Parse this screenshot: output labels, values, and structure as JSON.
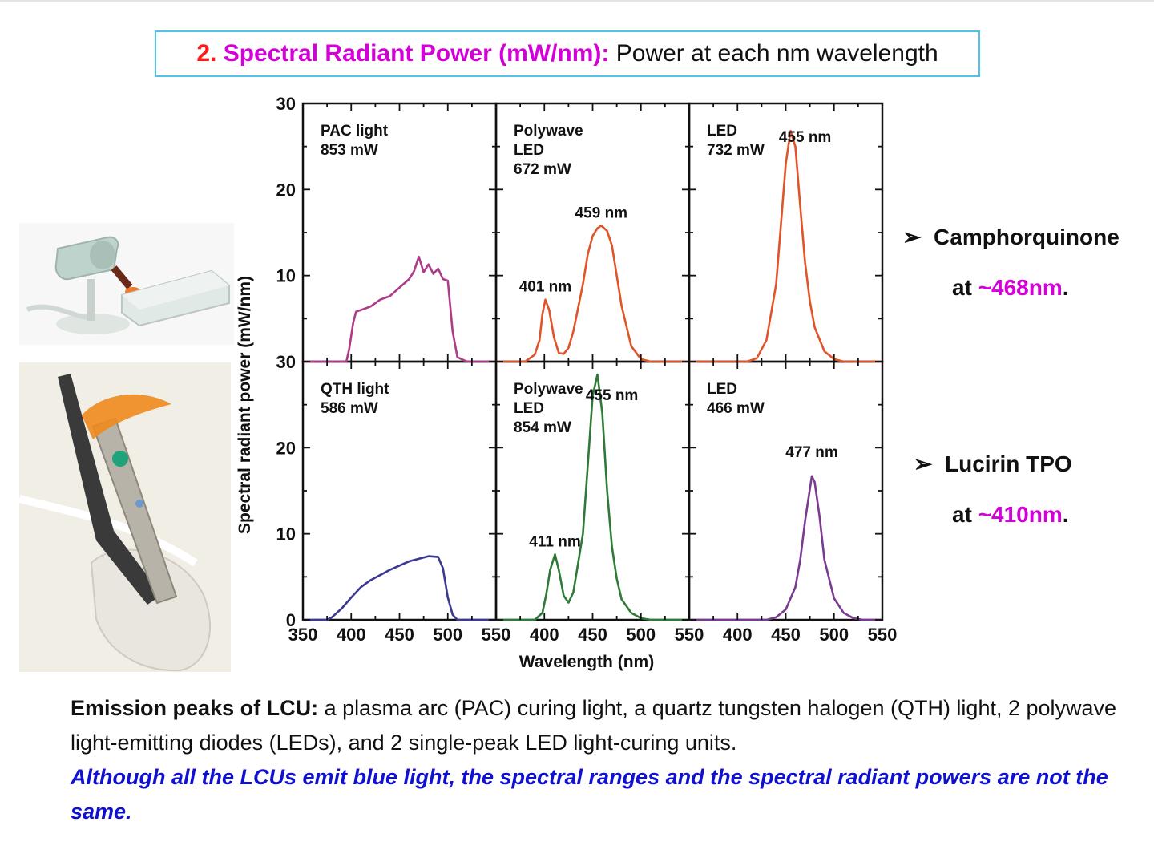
{
  "slide": {
    "title_number": "2.",
    "title_term": "Spectral Radiant Power (mW/nm):",
    "title_rest": "Power at each nm wavelength",
    "notes": [
      {
        "bullet": "➢",
        "name": "Camphorquinone",
        "at": "at",
        "peak": "~468nm",
        "period": "."
      },
      {
        "bullet": "➢",
        "name": "Lucirin TPO",
        "at": "at",
        "peak": "~410nm",
        "period": "."
      }
    ],
    "caption": {
      "lead": "Emission peaks of LCU:",
      "text": " a plasma arc (PAC) curing light, a quartz tungsten halogen (QTH) light, 2 polywave light-emitting diodes (LEDs), and 2 single-peak LED light-curing units.",
      "emphasis": "Although all the LCUs emit blue light, the spectral ranges and the spectral radiant powers are not the same."
    }
  },
  "chart_data": {
    "type": "line",
    "xlabel": "Wavelength (nm)",
    "ylabel": "Spectral radiant power (mW/nm)",
    "xlim": [
      350,
      550
    ],
    "ylim": [
      0,
      30
    ],
    "x_ticks": [
      350,
      400,
      450,
      500,
      550
    ],
    "x_tick_labels": [
      "350",
      "400",
      "450",
      "500",
      "550"
    ],
    "y_ticks_top": [
      10,
      20,
      30
    ],
    "y_tick_labels_top": [
      "10",
      "20",
      "30"
    ],
    "y_ticks_bottom": [
      0,
      10,
      20,
      30
    ],
    "y_tick_labels_bottom": [
      "0",
      "10",
      "20",
      "30"
    ],
    "grid": false,
    "panels": [
      {
        "row": 0,
        "col": 0,
        "label_lines": [
          "PAC light",
          "853 mW"
        ],
        "color": "#b03a8a",
        "peak_labels": [],
        "series": [
          {
            "x": [
              350,
              395,
              398,
              402,
              405,
              410,
              420,
              430,
              440,
              450,
              460,
              465,
              470,
              475,
              480,
              485,
              490,
              495,
              500,
              505,
              510,
              520,
              550
            ],
            "y": [
              0,
              0,
              1.5,
              4.5,
              5.8,
              6.0,
              6.4,
              7.2,
              7.6,
              8.6,
              9.6,
              10.5,
              12.2,
              10.4,
              11.3,
              10.2,
              10.8,
              9.6,
              9.4,
              3.5,
              0.5,
              0,
              0
            ]
          }
        ]
      },
      {
        "row": 0,
        "col": 1,
        "label_lines": [
          "Polywave",
          "LED",
          "672 mW"
        ],
        "color": "#e0542a",
        "peak_labels": [
          {
            "text": "401 nm",
            "x": 401,
            "y": 7.2
          },
          {
            "text": "459 nm",
            "x": 459,
            "y": 15.8
          }
        ],
        "series": [
          {
            "x": [
              350,
              380,
              390,
              395,
              398,
              401,
              405,
              410,
              415,
              420,
              425,
              430,
              440,
              445,
              450,
              455,
              459,
              465,
              470,
              475,
              480,
              490,
              500,
              510,
              520,
              550
            ],
            "y": [
              0,
              0,
              0.8,
              2.5,
              5.5,
              7.2,
              6.0,
              2.8,
              1.0,
              0.9,
              1.6,
              3.5,
              9.0,
              12.5,
              14.6,
              15.5,
              15.8,
              15.2,
              13.5,
              10.0,
              6.5,
              1.8,
              0.3,
              0,
              0,
              0
            ]
          }
        ]
      },
      {
        "row": 0,
        "col": 2,
        "label_lines": [
          "LED",
          "732 mW"
        ],
        "color": "#e0542a",
        "peak_labels": [
          {
            "text": "455 nm",
            "x": 470,
            "y": 24.6
          }
        ],
        "series": [
          {
            "x": [
              350,
              410,
              420,
              430,
              440,
              445,
              450,
              455,
              460,
              465,
              470,
              475,
              480,
              490,
              500,
              510,
              550
            ],
            "y": [
              0,
              0,
              0.4,
              2.5,
              9.0,
              16.0,
              23.0,
              26.8,
              25.0,
              18.0,
              11.5,
              7.0,
              4.0,
              1.2,
              0.3,
              0,
              0
            ]
          }
        ]
      },
      {
        "row": 1,
        "col": 0,
        "label_lines": [
          "QTH light",
          "586 mW"
        ],
        "color": "#3a3a92",
        "peak_labels": [],
        "series": [
          {
            "x": [
              350,
              375,
              380,
              390,
              400,
              410,
              420,
              440,
              460,
              480,
              490,
              495,
              500,
              505,
              510,
              520,
              550
            ],
            "y": [
              0,
              0,
              0.3,
              1.3,
              2.6,
              3.8,
              4.6,
              5.8,
              6.8,
              7.4,
              7.3,
              6.0,
              2.6,
              0.6,
              0,
              0,
              0
            ]
          }
        ]
      },
      {
        "row": 1,
        "col": 1,
        "label_lines": [
          "Polywave",
          "LED",
          "854 mW"
        ],
        "color": "#2f7a36",
        "peak_labels": [
          {
            "text": "411 nm",
            "x": 411,
            "y": 7.6
          },
          {
            "text": "455 nm",
            "x": 470,
            "y": 24.6
          }
        ],
        "series": [
          {
            "x": [
              350,
              390,
              398,
              402,
              406,
              411,
              415,
              420,
              425,
              430,
              440,
              445,
              450,
              455,
              460,
              465,
              470,
              475,
              480,
              490,
              500,
              510,
              550
            ],
            "y": [
              0,
              0,
              0.8,
              3.0,
              5.8,
              7.6,
              5.8,
              2.8,
              2.0,
              3.2,
              10.0,
              18.0,
              26.0,
              28.5,
              24.0,
              15.0,
              8.5,
              4.8,
              2.4,
              0.8,
              0.2,
              0,
              0
            ]
          }
        ]
      },
      {
        "row": 1,
        "col": 2,
        "label_lines": [
          "LED",
          "466 mW"
        ],
        "color": "#7a3a90",
        "peak_labels": [
          {
            "text": "477 nm",
            "x": 477,
            "y": 18.0
          }
        ],
        "series": [
          {
            "x": [
              350,
              430,
              440,
              450,
              460,
              465,
              470,
              477,
              480,
              485,
              490,
              500,
              510,
              520,
              530,
              550
            ],
            "y": [
              0,
              0,
              0.3,
              1.2,
              3.8,
              7.0,
              11.5,
              16.7,
              16.0,
              12.0,
              7.0,
              2.5,
              0.8,
              0.2,
              0,
              0
            ]
          }
        ]
      }
    ]
  },
  "images": [
    {
      "name": "desktop-curing-unit-image",
      "description": "desktop curing light unit"
    },
    {
      "name": "cordless-curing-light-image",
      "description": "handheld curing light in stand"
    }
  ]
}
